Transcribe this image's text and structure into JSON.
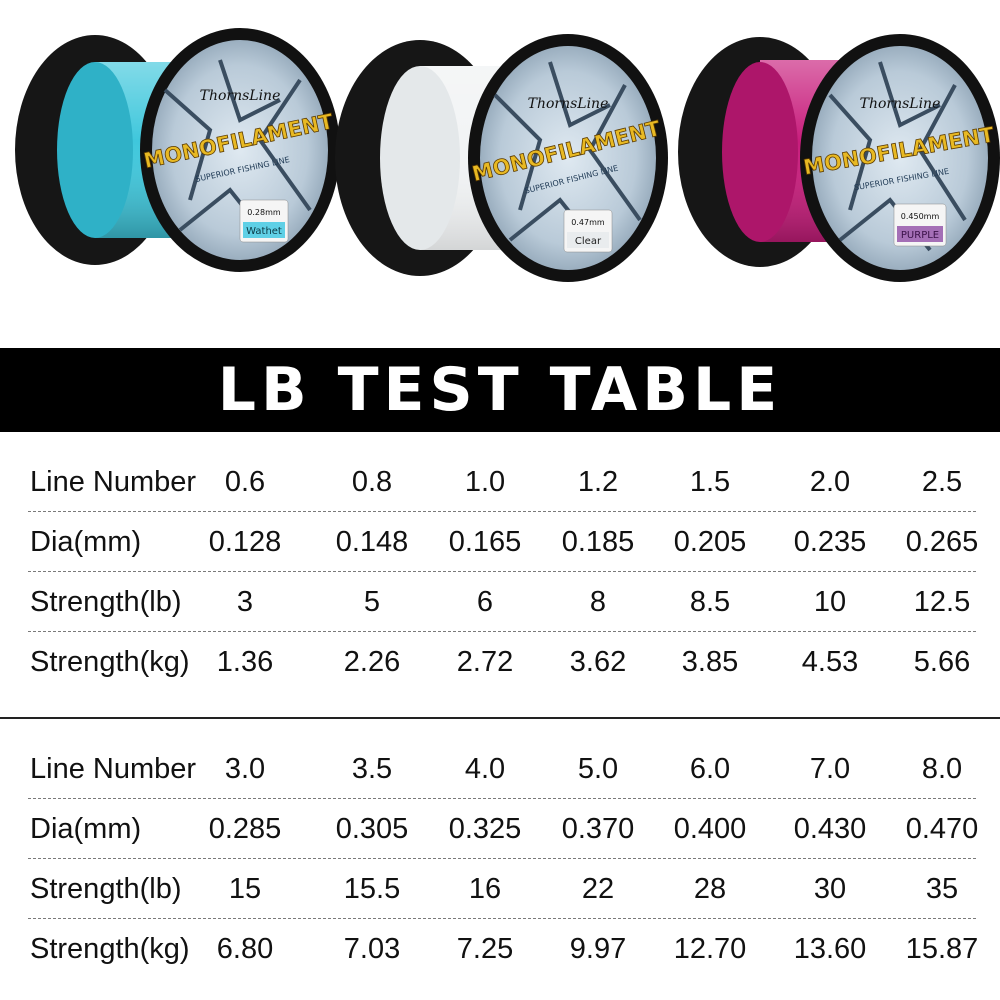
{
  "spools": [
    {
      "brand": "ThornsLine",
      "product": "MONOFILAMENT",
      "tagline": "SUPERIOR FISHING LINE",
      "diameter": "0.28mm",
      "color_name": "Wathet",
      "line_color": "#3fc7dc",
      "tag_color": "#5fd0e6"
    },
    {
      "brand": "ThornsLine",
      "product": "MONOFILAMENT",
      "tagline": "SUPERIOR FISHING LINE",
      "diameter": "0.47mm",
      "color_name": "Clear",
      "line_color": "#f2f4f5",
      "tag_color": "#e9ecee"
    },
    {
      "brand": "ThornsLine",
      "product": "MONOFILAMENT",
      "tagline": "SUPERIOR FISHING LINE",
      "diameter": "0.450mm",
      "color_name": "PURPLE",
      "line_color": "#c81d7c",
      "tag_color": "#a46fb6"
    }
  ],
  "banner": {
    "title": "LB TEST TABLE"
  },
  "tables": [
    {
      "rows": [
        {
          "label": "Line Number",
          "values": [
            "0.6",
            "0.8",
            "1.0",
            "1.2",
            "1.5",
            "2.0",
            "2.5"
          ]
        },
        {
          "label": "Dia(mm)",
          "values": [
            "0.128",
            "0.148",
            "0.165",
            "0.185",
            "0.205",
            "0.235",
            "0.265"
          ]
        },
        {
          "label": "Strength(lb)",
          "values": [
            "3",
            "5",
            "6",
            "8",
            "8.5",
            "10",
            "12.5"
          ]
        },
        {
          "label": "Strength(kg)",
          "values": [
            "1.36",
            "2.26",
            "2.72",
            "3.62",
            "3.85",
            "4.53",
            "5.66"
          ]
        }
      ]
    },
    {
      "rows": [
        {
          "label": "Line Number",
          "values": [
            "3.0",
            "3.5",
            "4.0",
            "5.0",
            "6.0",
            "7.0",
            "8.0"
          ]
        },
        {
          "label": "Dia(mm)",
          "values": [
            "0.285",
            "0.305",
            "0.325",
            "0.370",
            "0.400",
            "0.430",
            "0.470"
          ]
        },
        {
          "label": "Strength(lb)",
          "values": [
            "15",
            "15.5",
            "16",
            "22",
            "28",
            "30",
            "35"
          ]
        },
        {
          "label": "Strength(kg)",
          "values": [
            "6.80",
            "7.03",
            "7.25",
            "9.97",
            "12.70",
            "13.60",
            "15.87"
          ]
        }
      ]
    }
  ]
}
